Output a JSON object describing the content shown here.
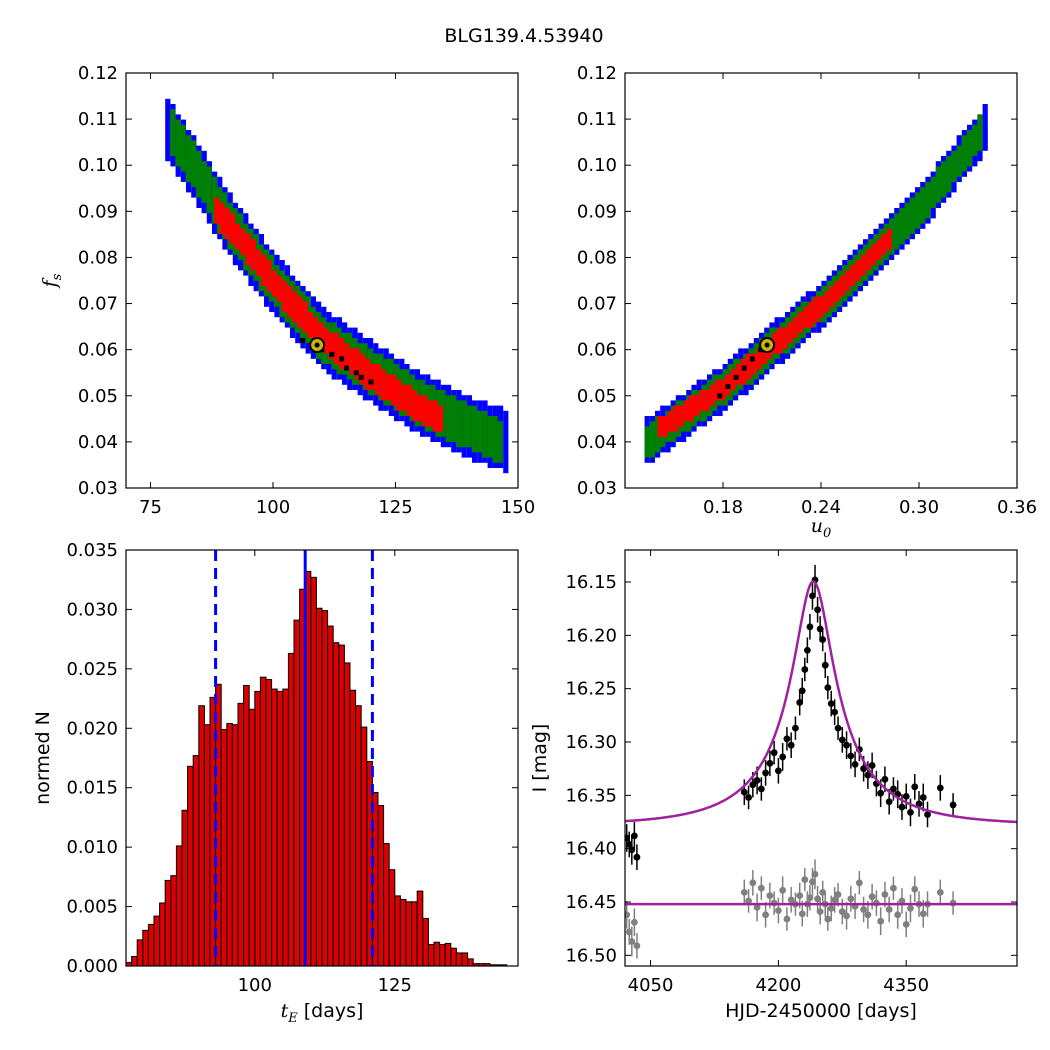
{
  "figure": {
    "title": "BLG139.4.53940"
  },
  "chart_data": [
    {
      "type": "heatmap",
      "panel": "fs_vs_tE",
      "xlabel": "",
      "ylabel_main": "f",
      "ylabel_sub": "s",
      "xlim": [
        70,
        150
      ],
      "ylim": [
        0.03,
        0.12
      ],
      "xticks": [
        75,
        100,
        125,
        150
      ],
      "xtick_labels": [
        "75",
        "100",
        "125",
        "150"
      ],
      "yticks": [
        0.03,
        0.04,
        0.05,
        0.06,
        0.07,
        0.08,
        0.09,
        0.1,
        0.11,
        0.12
      ],
      "ytick_labels": [
        "0.03",
        "0.04",
        "0.05",
        "0.06",
        "0.07",
        "0.08",
        "0.09",
        "0.10",
        "0.11",
        "0.12"
      ],
      "levels": [
        {
          "name": "3sigma",
          "color": "#0000ff",
          "ridge_x": [
            78,
            85,
            90,
            100,
            110,
            120,
            130,
            140,
            148
          ],
          "ridge_y": [
            0.108,
            0.097,
            0.088,
            0.074,
            0.062,
            0.055,
            0.048,
            0.043,
            0.04
          ],
          "halfwidth": 0.0062
        },
        {
          "name": "2sigma",
          "color": "#008000",
          "ridge_x": [
            79,
            85,
            90,
            100,
            110,
            120,
            130,
            140,
            146
          ],
          "ridge_y": [
            0.107,
            0.097,
            0.088,
            0.074,
            0.062,
            0.055,
            0.048,
            0.043,
            0.04
          ],
          "halfwidth": 0.0044
        },
        {
          "name": "1sigma",
          "color": "#ff0000",
          "ridge_x": [
            88,
            95,
            100,
            110,
            120,
            130,
            134
          ],
          "ridge_y": [
            0.09,
            0.081,
            0.074,
            0.062,
            0.054,
            0.047,
            0.045
          ],
          "halfwidth": 0.0026
        }
      ],
      "chain_points": {
        "color": "#000000",
        "x": [
          106,
          108,
          110,
          112,
          114,
          115,
          117,
          118,
          120
        ],
        "y": [
          0.062,
          0.061,
          0.06,
          0.059,
          0.058,
          0.056,
          0.055,
          0.054,
          0.053
        ]
      },
      "best_fit": {
        "x": 109,
        "y": 0.061,
        "color": "#c8b400"
      }
    },
    {
      "type": "heatmap",
      "panel": "fs_vs_u0",
      "xlabel_main": "u",
      "xlabel_sub": "0",
      "ylabel": "",
      "xlim": [
        0.12,
        0.36
      ],
      "ylim": [
        0.03,
        0.12
      ],
      "xticks": [
        0.18,
        0.24,
        0.3,
        0.36
      ],
      "xtick_labels": [
        "0.18",
        "0.24",
        "0.30",
        "0.36"
      ],
      "yticks": [
        0.03,
        0.04,
        0.05,
        0.06,
        0.07,
        0.08,
        0.09,
        0.1,
        0.11,
        0.12
      ],
      "ytick_labels": [
        "0.03",
        "0.04",
        "0.05",
        "0.06",
        "0.07",
        "0.08",
        "0.09",
        "0.10",
        "0.11",
        "0.12"
      ],
      "levels": [
        {
          "name": "3sigma",
          "color": "#0000ff",
          "ridge_x": [
            0.132,
            0.18,
            0.21,
            0.24,
            0.27,
            0.3,
            0.33,
            0.342
          ],
          "ridge_y": [
            0.04,
            0.052,
            0.061,
            0.07,
            0.08,
            0.091,
            0.104,
            0.109
          ],
          "halfwidth": 0.0045
        },
        {
          "name": "2sigma",
          "color": "#008000",
          "ridge_x": [
            0.132,
            0.18,
            0.21,
            0.24,
            0.27,
            0.3,
            0.33,
            0.338
          ],
          "ridge_y": [
            0.04,
            0.052,
            0.061,
            0.07,
            0.08,
            0.091,
            0.104,
            0.108
          ],
          "halfwidth": 0.0032
        },
        {
          "name": "1sigma",
          "color": "#ff0000",
          "ridge_x": [
            0.14,
            0.18,
            0.21,
            0.24,
            0.27,
            0.283
          ],
          "ridge_y": [
            0.043,
            0.052,
            0.061,
            0.07,
            0.08,
            0.085
          ],
          "halfwidth": 0.0018
        }
      ],
      "chain_points": {
        "color": "#000000",
        "x": [
          0.178,
          0.183,
          0.188,
          0.193,
          0.198,
          0.203
        ],
        "y": [
          0.05,
          0.052,
          0.054,
          0.056,
          0.058,
          0.06
        ]
      },
      "best_fit": {
        "x": 0.207,
        "y": 0.061,
        "color": "#c8b400"
      }
    },
    {
      "type": "bar",
      "panel": "tE_histogram",
      "xlabel_main": "t",
      "xlabel_sub": "E",
      "xlabel_rest": " [days]",
      "ylabel": "normed N",
      "xlim": [
        77,
        147
      ],
      "ylim": [
        0,
        0.035
      ],
      "xticks": [
        100,
        125
      ],
      "xtick_labels": [
        "100",
        "125"
      ],
      "yticks": [
        0,
        0.005,
        0.01,
        0.015,
        0.02,
        0.025,
        0.03,
        0.035
      ],
      "ytick_labels": [
        "0.000",
        "0.005",
        "0.010",
        "0.015",
        "0.020",
        "0.025",
        "0.030",
        "0.035"
      ],
      "bin_start": 77,
      "bin_width": 1,
      "values": [
        0.0003,
        0.0008,
        0.0022,
        0.003,
        0.0035,
        0.0042,
        0.0053,
        0.0072,
        0.0076,
        0.0101,
        0.0131,
        0.0168,
        0.0177,
        0.0219,
        0.0203,
        0.0226,
        0.0237,
        0.0199,
        0.0204,
        0.0203,
        0.0221,
        0.0236,
        0.0216,
        0.0231,
        0.0243,
        0.0241,
        0.0233,
        0.0231,
        0.0233,
        0.0263,
        0.0291,
        0.0317,
        0.0332,
        0.0327,
        0.0301,
        0.0299,
        0.0286,
        0.0272,
        0.027,
        0.0255,
        0.0232,
        0.0219,
        0.0201,
        0.0172,
        0.0146,
        0.0135,
        0.0103,
        0.0081,
        0.0059,
        0.0056,
        0.0054,
        0.0054,
        0.0063,
        0.004,
        0.0018,
        0.002,
        0.0018,
        0.0019,
        0.0015,
        0.0011,
        0.0011,
        0.0006,
        0.0002,
        0.0002,
        0.0002,
        0.0001,
        0.0001,
        0.0001,
        0.0,
        0.0
      ],
      "bar_color": "#dd0000",
      "median_line": {
        "x": 109,
        "color": "#0000ff"
      },
      "interval_lines": {
        "x": [
          93,
          121
        ],
        "color": "#0000ff"
      }
    },
    {
      "type": "scatter",
      "panel": "light_curve",
      "xlabel": "HJD-2450000 [days]",
      "ylabel": "I [mag]",
      "xlim": [
        4020,
        4480
      ],
      "ylim": [
        16.51,
        16.12
      ],
      "xticks": [
        4050,
        4200,
        4350
      ],
      "xtick_labels": [
        "4050",
        "4200",
        "4350"
      ],
      "yticks": [
        16.15,
        16.2,
        16.25,
        16.3,
        16.35,
        16.4,
        16.45,
        16.5
      ],
      "ytick_labels": [
        "16.15",
        "16.20",
        "16.25",
        "16.30",
        "16.35",
        "16.40",
        "16.45",
        "16.50"
      ],
      "model": {
        "t0": 4241,
        "u0": 0.21,
        "tE": 109,
        "fs": 0.061,
        "baseline": 16.378,
        "color": "#a020a0"
      },
      "residual_baseline": {
        "y": 16.452,
        "color": "#a020a0"
      },
      "data_series": {
        "name": "",
        "color": "#000000",
        "x": [
          4022,
          4025,
          4028,
          4031,
          4034,
          4160,
          4165,
          4170,
          4175,
          4180,
          4185,
          4190,
          4195,
          4200,
          4205,
          4210,
          4215,
          4220,
          4225,
          4228,
          4231,
          4234,
          4237,
          4240,
          4243,
          4246,
          4249,
          4252,
          4255,
          4258,
          4262,
          4266,
          4270,
          4275,
          4280,
          4285,
          4290,
          4295,
          4300,
          4305,
          4310,
          4315,
          4320,
          4325,
          4330,
          4335,
          4340,
          4345,
          4350,
          4355,
          4360,
          4365,
          4370,
          4375,
          4390,
          4405
        ],
        "y": [
          16.39,
          16.396,
          16.401,
          16.388,
          16.408,
          16.347,
          16.352,
          16.34,
          16.336,
          16.344,
          16.329,
          16.32,
          16.31,
          16.327,
          16.314,
          16.297,
          16.303,
          16.287,
          16.263,
          16.252,
          16.232,
          16.214,
          16.192,
          16.163,
          16.148,
          16.176,
          16.194,
          16.204,
          16.228,
          16.249,
          16.264,
          16.272,
          16.287,
          16.298,
          16.303,
          16.313,
          16.321,
          16.307,
          16.325,
          16.331,
          16.322,
          16.339,
          16.348,
          16.335,
          16.356,
          16.344,
          16.349,
          16.361,
          16.351,
          16.366,
          16.342,
          16.358,
          16.352,
          16.368,
          16.343,
          16.359
        ],
        "yerr": [
          0.013,
          0.012,
          0.014,
          0.013,
          0.012,
          0.012,
          0.011,
          0.012,
          0.013,
          0.011,
          0.012,
          0.012,
          0.011,
          0.012,
          0.013,
          0.011,
          0.012,
          0.011,
          0.012,
          0.012,
          0.011,
          0.012,
          0.012,
          0.013,
          0.014,
          0.012,
          0.012,
          0.011,
          0.012,
          0.011,
          0.012,
          0.012,
          0.011,
          0.012,
          0.013,
          0.012,
          0.012,
          0.011,
          0.012,
          0.013,
          0.012,
          0.012,
          0.013,
          0.012,
          0.012,
          0.011,
          0.013,
          0.012,
          0.012,
          0.013,
          0.012,
          0.012,
          0.013,
          0.012,
          0.012,
          0.011
        ]
      },
      "residual_series": {
        "name": "",
        "color": "#808080",
        "x": [
          4022,
          4025,
          4028,
          4031,
          4034,
          4160,
          4165,
          4170,
          4175,
          4180,
          4185,
          4190,
          4195,
          4200,
          4205,
          4210,
          4215,
          4220,
          4225,
          4228,
          4231,
          4234,
          4237,
          4240,
          4243,
          4246,
          4249,
          4252,
          4255,
          4258,
          4262,
          4266,
          4270,
          4275,
          4280,
          4285,
          4290,
          4295,
          4300,
          4305,
          4310,
          4315,
          4320,
          4325,
          4330,
          4335,
          4340,
          4345,
          4350,
          4355,
          4360,
          4365,
          4370,
          4375,
          4390,
          4405
        ],
        "y": [
          16.462,
          16.478,
          16.487,
          16.469,
          16.491,
          16.441,
          16.449,
          16.432,
          16.455,
          16.437,
          16.462,
          16.444,
          16.451,
          16.458,
          16.439,
          16.466,
          16.448,
          16.452,
          16.444,
          16.461,
          16.429,
          16.452,
          16.446,
          16.431,
          16.424,
          16.447,
          16.459,
          16.441,
          16.452,
          16.466,
          16.456,
          16.448,
          16.443,
          16.459,
          16.463,
          16.447,
          16.454,
          16.432,
          16.457,
          16.462,
          16.445,
          16.451,
          16.468,
          16.443,
          16.457,
          16.437,
          16.462,
          16.449,
          16.471,
          16.456,
          16.438,
          16.452,
          16.461,
          16.452,
          16.441,
          16.451
        ],
        "yerr": [
          0.013,
          0.012,
          0.014,
          0.013,
          0.012,
          0.012,
          0.011,
          0.012,
          0.013,
          0.011,
          0.012,
          0.012,
          0.011,
          0.012,
          0.013,
          0.011,
          0.012,
          0.011,
          0.012,
          0.012,
          0.011,
          0.012,
          0.012,
          0.013,
          0.014,
          0.012,
          0.012,
          0.011,
          0.012,
          0.011,
          0.012,
          0.012,
          0.011,
          0.012,
          0.013,
          0.012,
          0.012,
          0.011,
          0.012,
          0.013,
          0.012,
          0.012,
          0.013,
          0.012,
          0.012,
          0.011,
          0.013,
          0.012,
          0.012,
          0.013,
          0.012,
          0.012,
          0.013,
          0.012,
          0.012,
          0.011
        ]
      }
    }
  ]
}
